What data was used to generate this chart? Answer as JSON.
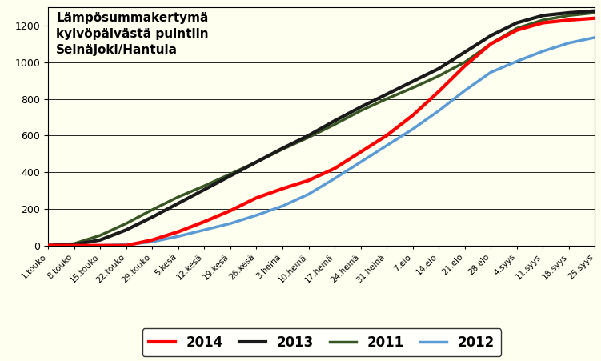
{
  "title": "Lämpösummakertymä\nkylvöpäivästä puintiin\nSeinäjoki/Hantula",
  "background_color": "#FFFFF0",
  "x_labels": [
    "1.touko",
    "8.touko",
    "15.touko",
    "22.touko",
    "29.touko",
    "5.kesä",
    "12.kesä",
    "19.kesä",
    "26.kesä",
    "3.heinä",
    "10.heinä",
    "17.heinä",
    "24.heinä",
    "31.heinä",
    "7.elo",
    "14.elo",
    "21.elo",
    "28.elo",
    "4.syys",
    "11.syys",
    "18.syys",
    "25.syys"
  ],
  "y2014": [
    0,
    0,
    0,
    0,
    30,
    75,
    130,
    190,
    260,
    310,
    355,
    420,
    510,
    600,
    710,
    840,
    980,
    1100,
    1175,
    1215,
    1230,
    1240
  ],
  "y2013": [
    0,
    5,
    30,
    85,
    155,
    230,
    305,
    380,
    455,
    530,
    600,
    680,
    755,
    825,
    895,
    965,
    1055,
    1145,
    1215,
    1255,
    1270,
    1280
  ],
  "y2012": [
    0,
    0,
    0,
    5,
    20,
    50,
    85,
    120,
    165,
    215,
    280,
    365,
    455,
    545,
    635,
    735,
    845,
    945,
    1005,
    1060,
    1105,
    1135
  ],
  "y2011": [
    0,
    10,
    55,
    120,
    195,
    265,
    325,
    390,
    455,
    525,
    590,
    660,
    735,
    800,
    860,
    925,
    1000,
    1100,
    1185,
    1230,
    1255,
    1270
  ],
  "color_2014": "#FF0000",
  "color_2013": "#1a1a1a",
  "color_2012": "#5B9BD5",
  "color_2011": "#375623",
  "linewidth_2014": 3.0,
  "linewidth_2013": 3.0,
  "linewidth_2012": 2.5,
  "linewidth_2011": 2.5,
  "ylim": [
    0,
    1300
  ],
  "yticks": [
    0,
    200,
    400,
    600,
    800,
    1000,
    1200
  ],
  "legend_labels": [
    "2014",
    "2013",
    "2012",
    "2011"
  ]
}
